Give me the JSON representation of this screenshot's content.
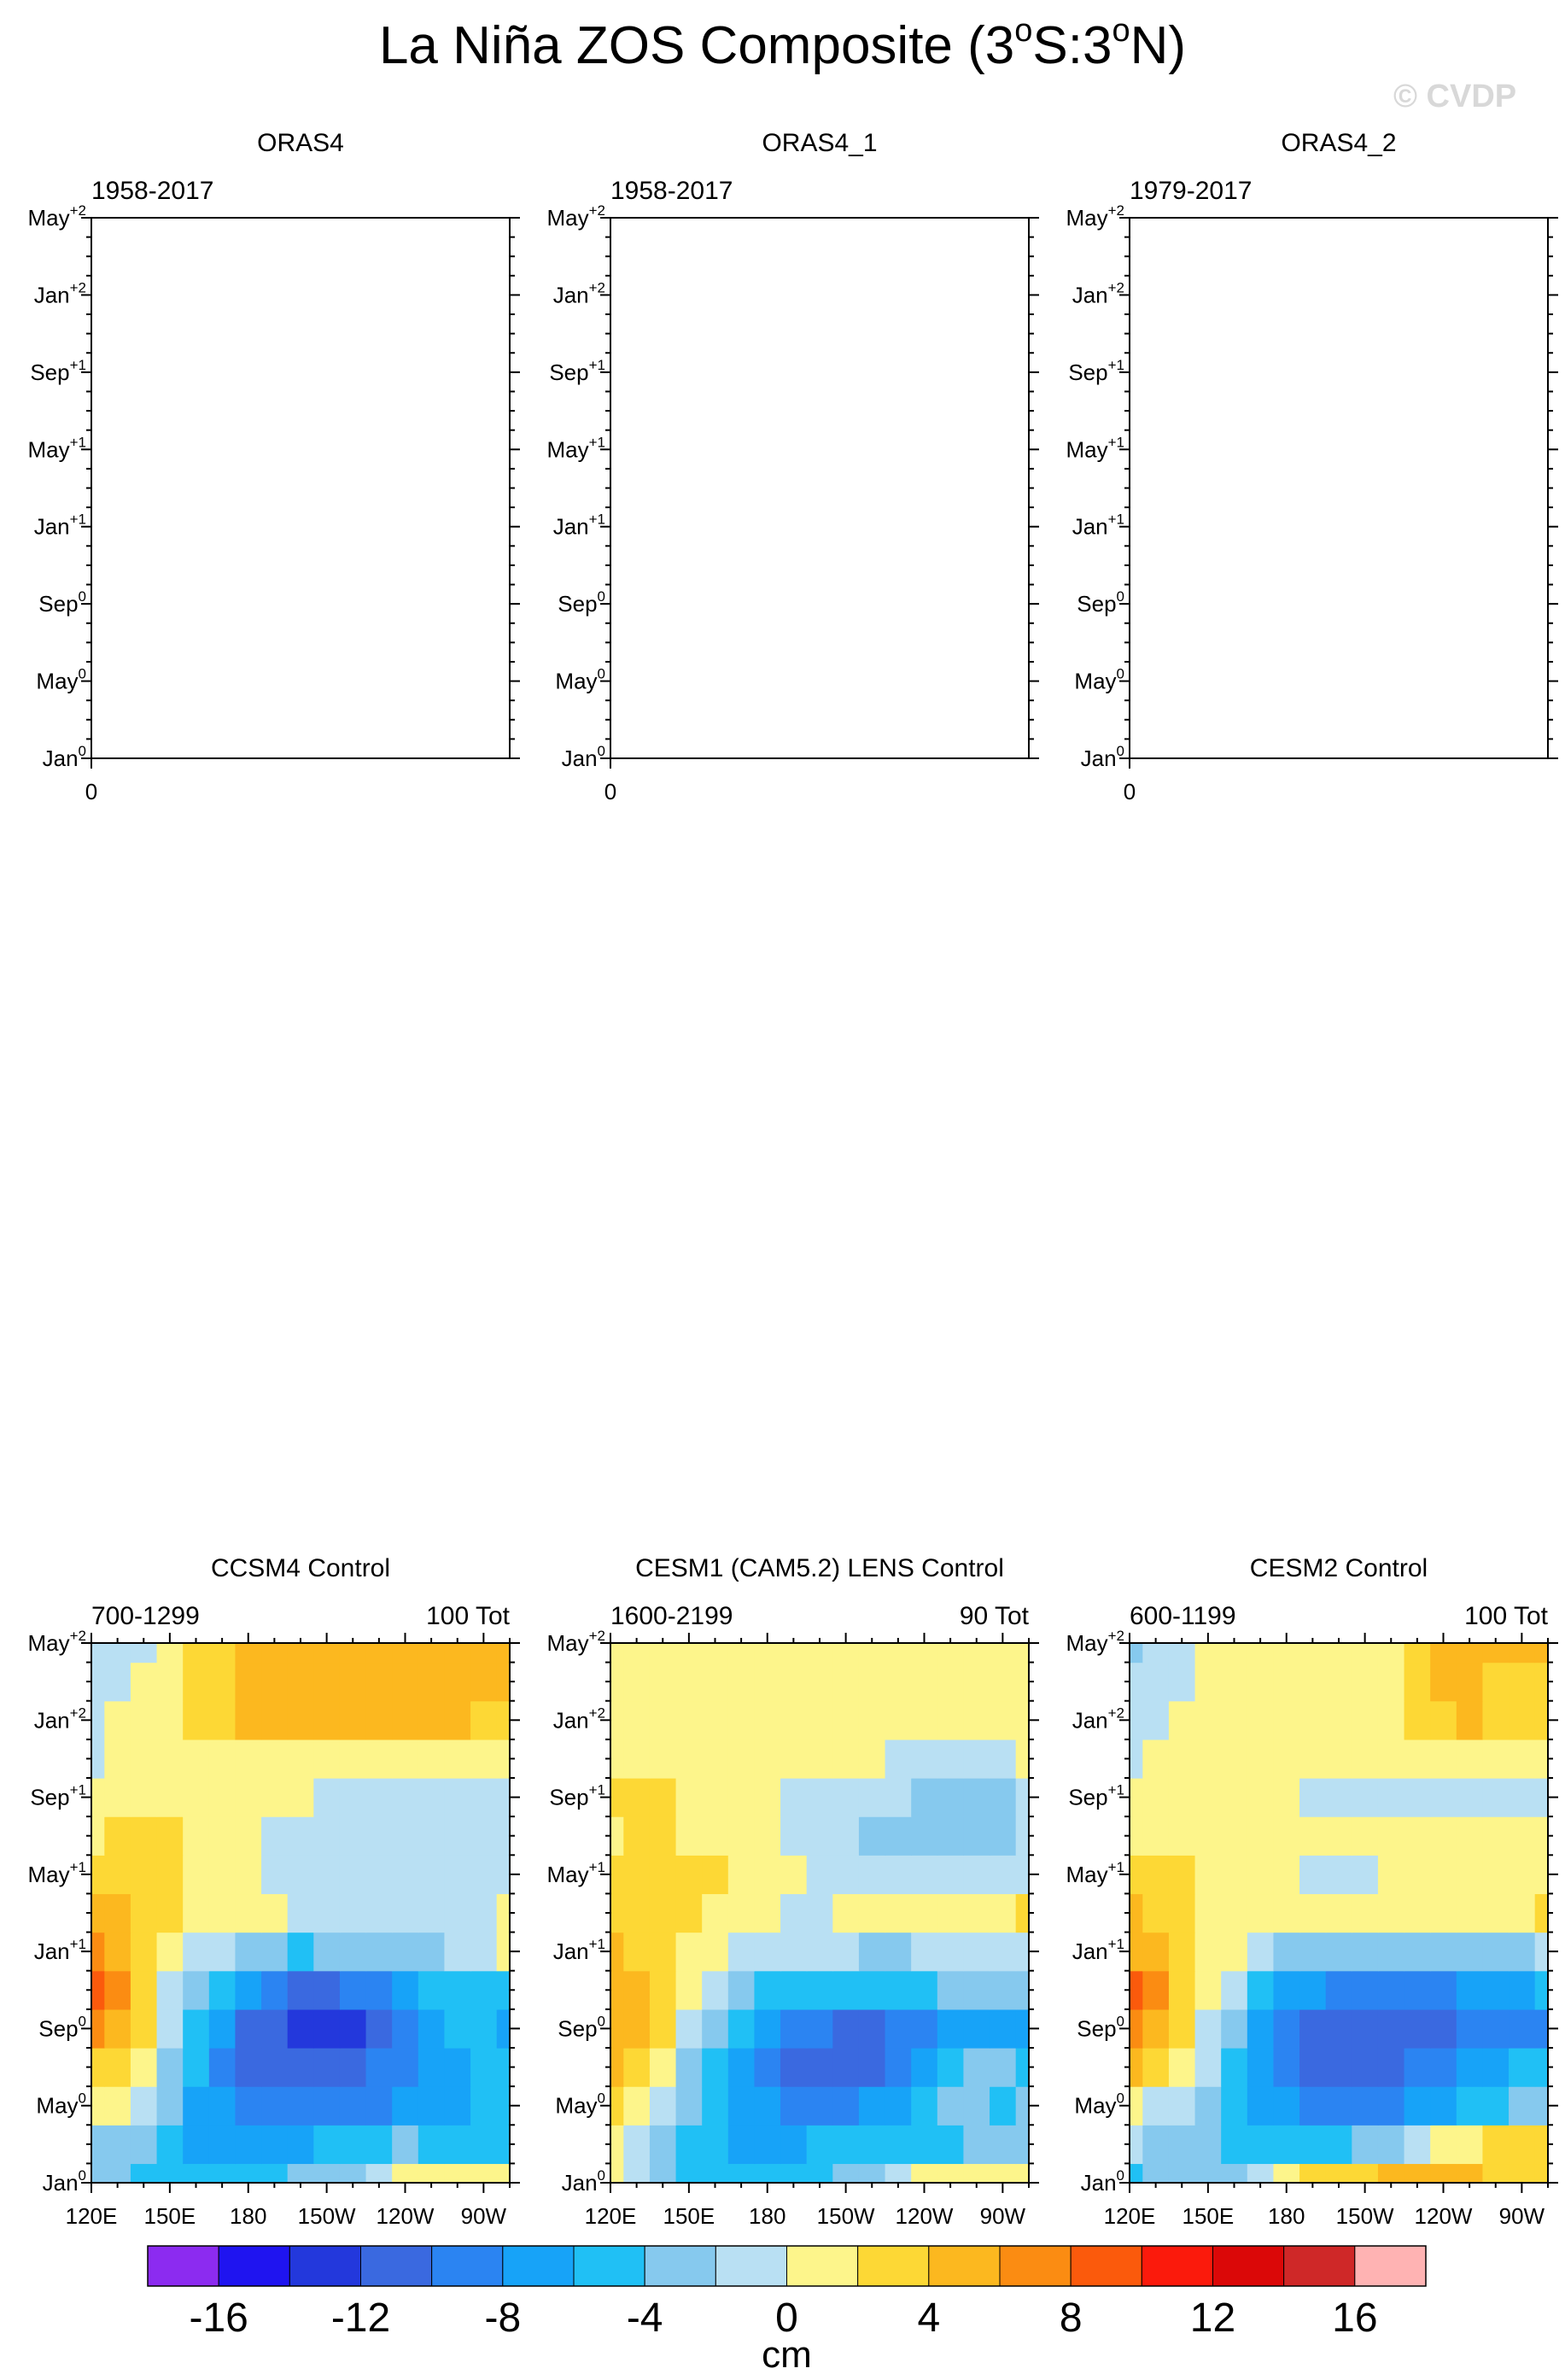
{
  "figure": {
    "title_main": "La Niña ZOS Composite (3",
    "title_deg1": "o",
    "title_mid": "S:3",
    "title_deg2": "o",
    "title_end": "N)",
    "credit": "© CVDP"
  },
  "y_tick_labels": [
    {
      "base": "May",
      "sup": "+2"
    },
    {
      "base": "Jan",
      "sup": "+2"
    },
    {
      "base": "Sep",
      "sup": "+1"
    },
    {
      "base": "May",
      "sup": "+1"
    },
    {
      "base": "Jan",
      "sup": "+1"
    },
    {
      "base": "Sep",
      "sup": "0"
    },
    {
      "base": "May",
      "sup": "0"
    },
    {
      "base": "Jan",
      "sup": "0"
    }
  ],
  "x_tick_labels": [
    "120E",
    "150E",
    "180",
    "150W",
    "120W",
    "90W"
  ],
  "colors": {
    "levels": [
      "#8c2bf0",
      "#1f14f0",
      "#2338dc",
      "#3a69e0",
      "#2b84f2",
      "#17a3f8",
      "#20c0f5",
      "#86c9ee",
      "#b9e0f3",
      "#fdf58b",
      "#fdd835",
      "#fcb81f",
      "#fb8c12",
      "#fb5a0c",
      "#fb1a0c",
      "#db0808",
      "#cf2828",
      "#ffb3b3"
    ]
  },
  "colorbar": {
    "labels": [
      "-16",
      "-12",
      "-8",
      "-4",
      "0",
      "4",
      "8",
      "12",
      "16"
    ],
    "unit": "cm"
  },
  "chart_data": [
    {
      "type": "heatmap",
      "title": "ORAS4",
      "subtitle_left": "1958-2017",
      "subtitle_right": "",
      "x_tick": "0",
      "empty": true
    },
    {
      "type": "heatmap",
      "title": "ORAS4_1",
      "subtitle_left": "1958-2017",
      "subtitle_right": "",
      "x_tick": "0",
      "empty": true
    },
    {
      "type": "heatmap",
      "title": "ORAS4_2",
      "subtitle_left": "1979-2017",
      "subtitle_right": "",
      "x_tick": "0",
      "empty": true
    },
    {
      "type": "heatmap",
      "title": "CCSM4 Control",
      "subtitle_left": "700-1299",
      "subtitle_right": "100 Tot",
      "empty": false,
      "xlim": [
        120,
        280
      ],
      "ylim": [
        0,
        28
      ],
      "x_values": [
        120,
        130,
        140,
        150,
        160,
        170,
        180,
        190,
        200,
        210,
        220,
        230,
        240,
        250,
        260,
        270,
        280
      ],
      "y_values": [
        0,
        2,
        4,
        6,
        8,
        10,
        12,
        14,
        16,
        18,
        20,
        22,
        24,
        26,
        28
      ],
      "z": [
        [
          -3,
          -4,
          -5,
          -5,
          -5,
          -5,
          -5,
          -5,
          -4,
          -4,
          -3,
          -2,
          0,
          1,
          1,
          1,
          1
        ],
        [
          -3,
          -3,
          -4,
          -6,
          -7,
          -7,
          -7,
          -7,
          -7,
          -6,
          -6,
          -5,
          -4,
          -5,
          -5,
          -5,
          -5
        ],
        [
          1,
          0,
          -2,
          -4,
          -7,
          -8,
          -9,
          -10,
          -10,
          -10,
          -9,
          -9,
          -8,
          -7,
          -7,
          -6,
          -6
        ],
        [
          3,
          2,
          0,
          -3,
          -6,
          -9,
          -11,
          -12,
          -12,
          -12,
          -11,
          -10,
          -9,
          -8,
          -7,
          -6,
          -6
        ],
        [
          6,
          5,
          2,
          -2,
          -5,
          -8,
          -11,
          -12,
          -13,
          -13,
          -13,
          -11,
          -9,
          -7,
          -6,
          -6,
          -7
        ],
        [
          8,
          7,
          3,
          -1,
          -3,
          -6,
          -8,
          -10,
          -11,
          -11,
          -10,
          -9,
          -7,
          -6,
          -5,
          -5,
          -5
        ],
        [
          6,
          5,
          3,
          1,
          -1,
          -2,
          -3,
          -4,
          -5,
          -4,
          -4,
          -4,
          -3,
          -3,
          -2,
          -2,
          1
        ],
        [
          4,
          4,
          3,
          2,
          1,
          1,
          0,
          0,
          -1,
          -1,
          -2,
          -2,
          -1,
          -1,
          -1,
          -1,
          1
        ],
        [
          2,
          2,
          3,
          2,
          1,
          1,
          0,
          -1,
          -2,
          -2,
          -2,
          -2,
          -2,
          -2,
          -2,
          -2,
          -1
        ],
        [
          1,
          3,
          3,
          2,
          1,
          1,
          1,
          -1,
          -2,
          -2,
          -2,
          -2,
          -2,
          -2,
          -2,
          -2,
          -2
        ],
        [
          1,
          1,
          1,
          1,
          1,
          1,
          1,
          1,
          0,
          -1,
          -1,
          -1,
          -1,
          -1,
          -1,
          -1,
          -1
        ],
        [
          -1,
          1,
          1,
          1,
          1,
          1,
          1,
          1,
          1,
          1,
          1,
          1,
          1,
          1,
          1,
          1,
          1
        ],
        [
          -1,
          0,
          1,
          1,
          2,
          3,
          4,
          4,
          4,
          4,
          4,
          4,
          4,
          4,
          4,
          3,
          2
        ],
        [
          -1,
          -1,
          1,
          1,
          2,
          3,
          4,
          4,
          4,
          4,
          4,
          4,
          4,
          4,
          4,
          4,
          4
        ],
        [
          -1,
          -2,
          -1,
          1,
          2,
          3,
          4,
          4,
          4,
          4,
          4,
          4,
          4,
          4,
          4,
          4,
          4
        ]
      ]
    },
    {
      "type": "heatmap",
      "title": "CESM1 (CAM5.2) LENS Control",
      "subtitle_left": "1600-2199",
      "subtitle_right": "90 Tot",
      "empty": false,
      "xlim": [
        120,
        280
      ],
      "ylim": [
        0,
        28
      ],
      "x_values": [
        120,
        130,
        140,
        150,
        160,
        170,
        180,
        190,
        200,
        210,
        220,
        230,
        240,
        250,
        260,
        270,
        280
      ],
      "y_values": [
        0,
        2,
        4,
        6,
        8,
        10,
        12,
        14,
        16,
        18,
        20,
        22,
        24,
        26,
        28
      ],
      "z": [
        [
          0,
          -1,
          -4,
          -5,
          -5,
          -5,
          -5,
          -5,
          -5,
          -4,
          -4,
          -2,
          1,
          1,
          1,
          1,
          1
        ],
        [
          0,
          -1,
          -3,
          -5,
          -6,
          -7,
          -7,
          -7,
          -6,
          -6,
          -5,
          -5,
          -5,
          -5,
          -4,
          -4,
          -4
        ],
        [
          2,
          1,
          -1,
          -3,
          -5,
          -7,
          -8,
          -9,
          -9,
          -9,
          -8,
          -7,
          -6,
          -4,
          -4,
          -5,
          -4
        ],
        [
          4,
          2,
          1,
          -3,
          -5,
          -8,
          -10,
          -11,
          -12,
          -12,
          -11,
          -10,
          -8,
          -5,
          -3,
          -4,
          -6
        ],
        [
          5,
          4,
          3,
          -1,
          -4,
          -6,
          -8,
          -9,
          -10,
          -11,
          -11,
          -10,
          -9,
          -8,
          -7,
          -8,
          -8
        ],
        [
          5,
          4,
          3,
          0,
          -2,
          -4,
          -5,
          -6,
          -6,
          -6,
          -6,
          -6,
          -5,
          -4,
          -4,
          -4,
          -4
        ],
        [
          4,
          3,
          2,
          1,
          0,
          -1,
          -2,
          -2,
          -2,
          -2,
          -3,
          -3,
          -2,
          -2,
          -2,
          -2,
          -2
        ],
        [
          3,
          3,
          2,
          2,
          1,
          1,
          1,
          -1,
          -1,
          0,
          1,
          1,
          1,
          1,
          1,
          1,
          2
        ],
        [
          2,
          2,
          3,
          3,
          2,
          1,
          1,
          0,
          -1,
          -1,
          -1,
          -1,
          -1,
          -1,
          -1,
          -1,
          -1
        ],
        [
          1,
          2,
          2,
          1,
          1,
          1,
          0,
          -1,
          -2,
          -2,
          -3,
          -3,
          -3,
          -3,
          -3,
          -3,
          -2
        ],
        [
          2,
          3,
          2,
          1,
          1,
          1,
          1,
          -1,
          -1,
          -2,
          -2,
          -2,
          -3,
          -3,
          -3,
          -3,
          -2
        ],
        [
          1,
          1,
          1,
          1,
          1,
          1,
          1,
          1,
          1,
          1,
          0,
          -1,
          -1,
          -1,
          -1,
          -1,
          1
        ],
        [
          1,
          1,
          1,
          1,
          1,
          1,
          1,
          1,
          1,
          1,
          1,
          1,
          1,
          1,
          1,
          1,
          1
        ],
        [
          1,
          1,
          1,
          1,
          1,
          1,
          1,
          1,
          1,
          1,
          1,
          1,
          1,
          1,
          1,
          1,
          1
        ],
        [
          1,
          1,
          1,
          1,
          1,
          1,
          1,
          1,
          1,
          1,
          1,
          1,
          1,
          1,
          1,
          1,
          1
        ]
      ]
    },
    {
      "type": "heatmap",
      "title": "CESM2 Control",
      "subtitle_left": "600-1199",
      "subtitle_right": "100 Tot",
      "empty": false,
      "xlim": [
        120,
        280
      ],
      "ylim": [
        0,
        28
      ],
      "x_values": [
        120,
        130,
        140,
        150,
        160,
        170,
        180,
        190,
        200,
        210,
        220,
        230,
        240,
        250,
        260,
        270,
        280
      ],
      "y_values": [
        0,
        2,
        4,
        6,
        8,
        10,
        12,
        14,
        16,
        18,
        20,
        22,
        24,
        26,
        28
      ],
      "z": [
        [
          -5,
          -4,
          -4,
          -4,
          -3,
          -1,
          1,
          2,
          3,
          3,
          4,
          4,
          4,
          4,
          3,
          3,
          2
        ],
        [
          -2,
          -3,
          -3,
          -4,
          -5,
          -6,
          -6,
          -6,
          -5,
          -4,
          -3,
          -2,
          1,
          1,
          2,
          3,
          3
        ],
        [
          1,
          -1,
          -2,
          -3,
          -5,
          -7,
          -8,
          -9,
          -9,
          -9,
          -9,
          -8,
          -7,
          -6,
          -5,
          -4,
          -3
        ],
        [
          4,
          2,
          0,
          -2,
          -5,
          -8,
          -10,
          -11,
          -11,
          -11,
          -11,
          -10,
          -9,
          -8,
          -7,
          -6,
          -6
        ],
        [
          6,
          5,
          2,
          -1,
          -4,
          -7,
          -9,
          -11,
          -12,
          -12,
          -12,
          -12,
          -11,
          -10,
          -9,
          -9,
          -10
        ],
        [
          9,
          7,
          3,
          0,
          -2,
          -5,
          -7,
          -8,
          -9,
          -9,
          -9,
          -9,
          -9,
          -8,
          -7,
          -7,
          -6
        ],
        [
          5,
          4,
          3,
          1,
          0,
          -2,
          -3,
          -4,
          -4,
          -4,
          -4,
          -4,
          -4,
          -4,
          -3,
          -3,
          -2
        ],
        [
          4,
          3,
          2,
          1,
          1,
          1,
          0,
          0,
          1,
          1,
          1,
          1,
          1,
          1,
          1,
          1,
          3
        ],
        [
          2,
          2,
          2,
          1,
          1,
          1,
          1,
          -1,
          -2,
          -1,
          1,
          1,
          1,
          1,
          1,
          1,
          1
        ],
        [
          1,
          1,
          1,
          1,
          1,
          1,
          1,
          1,
          1,
          1,
          1,
          1,
          1,
          1,
          1,
          1,
          1
        ],
        [
          1,
          1,
          1,
          1,
          1,
          1,
          1,
          -1,
          -1,
          -1,
          -1,
          -1,
          -1,
          -1,
          -1,
          -2,
          -2
        ],
        [
          -1,
          1,
          1,
          1,
          1,
          1,
          1,
          1,
          1,
          1,
          1,
          1,
          1,
          1,
          1,
          1,
          1
        ],
        [
          -1,
          -1,
          1,
          1,
          1,
          1,
          1,
          1,
          1,
          1,
          1,
          2,
          3,
          4,
          3,
          3,
          3
        ],
        [
          -1,
          -2,
          -1,
          1,
          1,
          1,
          1,
          1,
          1,
          1,
          1,
          3,
          4,
          4,
          3,
          3,
          3
        ],
        [
          -3,
          -2,
          -1,
          1,
          1,
          1,
          1,
          1,
          1,
          1,
          1,
          3,
          4,
          4,
          4,
          4,
          4
        ]
      ]
    }
  ]
}
